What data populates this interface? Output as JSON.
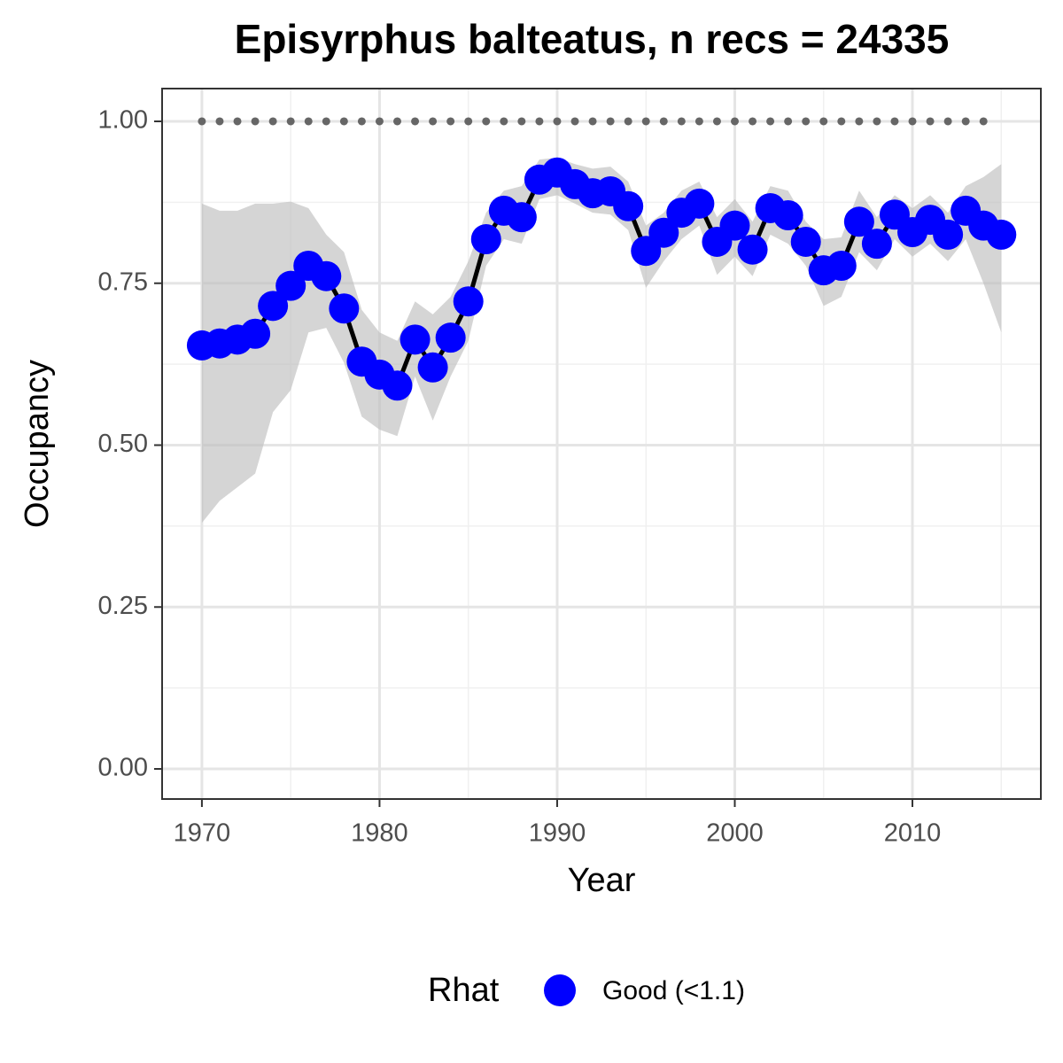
{
  "chart_data": {
    "type": "line",
    "title": "Episyrphus balteatus, n recs = 24335",
    "x_label": "Year",
    "y_label": "Occupancy",
    "x": [
      1970,
      1971,
      1972,
      1973,
      1974,
      1975,
      1976,
      1977,
      1978,
      1979,
      1980,
      1981,
      1982,
      1983,
      1984,
      1985,
      1986,
      1987,
      1988,
      1989,
      1990,
      1991,
      1992,
      1993,
      1994,
      1995,
      1996,
      1997,
      1998,
      1999,
      2000,
      2001,
      2002,
      2003,
      2004,
      2005,
      2006,
      2007,
      2008,
      2009,
      2010,
      2011,
      2012,
      2013,
      2014,
      2015
    ],
    "series": [
      {
        "name": "Good (<1.1)",
        "color": "#0000ff",
        "line_color": "#000000",
        "values": [
          0.654,
          0.657,
          0.663,
          0.672,
          0.715,
          0.746,
          0.777,
          0.761,
          0.711,
          0.629,
          0.609,
          0.592,
          0.663,
          0.62,
          0.666,
          0.722,
          0.818,
          0.862,
          0.852,
          0.91,
          0.921,
          0.903,
          0.889,
          0.892,
          0.869,
          0.8,
          0.828,
          0.859,
          0.873,
          0.814,
          0.839,
          0.802,
          0.866,
          0.855,
          0.814,
          0.77,
          0.777,
          0.845,
          0.811,
          0.856,
          0.829,
          0.848,
          0.825,
          0.862,
          0.839,
          0.825
        ],
        "lower": [
          0.38,
          0.414,
          0.435,
          0.456,
          0.551,
          0.585,
          0.674,
          0.681,
          0.627,
          0.544,
          0.524,
          0.514,
          0.606,
          0.538,
          0.606,
          0.661,
          0.777,
          0.818,
          0.811,
          0.88,
          0.886,
          0.873,
          0.859,
          0.856,
          0.832,
          0.743,
          0.784,
          0.818,
          0.839,
          0.763,
          0.791,
          0.761,
          0.825,
          0.811,
          0.777,
          0.715,
          0.729,
          0.798,
          0.77,
          0.818,
          0.791,
          0.811,
          0.784,
          0.818,
          0.75,
          0.674
        ],
        "upper": [
          0.873,
          0.862,
          0.862,
          0.873,
          0.873,
          0.876,
          0.866,
          0.825,
          0.798,
          0.709,
          0.674,
          0.661,
          0.722,
          0.702,
          0.729,
          0.784,
          0.859,
          0.893,
          0.9,
          0.941,
          0.944,
          0.934,
          0.927,
          0.93,
          0.907,
          0.839,
          0.859,
          0.893,
          0.907,
          0.852,
          0.88,
          0.845,
          0.9,
          0.893,
          0.845,
          0.818,
          0.821,
          0.893,
          0.852,
          0.886,
          0.866,
          0.886,
          0.859,
          0.9,
          0.914,
          0.934
        ]
      }
    ],
    "band_color": "#bfbfbf",
    "reference": {
      "color": "#666666",
      "values": [
        1,
        1,
        1,
        1,
        1,
        1,
        1,
        1,
        1,
        1,
        1,
        1,
        1,
        1,
        1,
        1,
        1,
        1,
        1,
        1,
        1,
        1,
        1,
        1,
        1,
        1,
        1,
        1,
        1,
        1,
        1,
        1,
        1,
        1,
        1,
        1,
        1,
        1,
        1,
        1,
        1,
        1,
        1,
        1,
        1,
        null
      ]
    },
    "xlim": [
      1967.76,
      2017.23
    ],
    "ylim": [
      -0.0465,
      1.0506
    ],
    "xticks": [
      1970,
      1980,
      1990,
      2000,
      2010
    ],
    "yticks": [
      {
        "value": 0,
        "label": "0.00"
      },
      {
        "value": 0.25,
        "label": "0.25"
      },
      {
        "value": 0.5,
        "label": "0.50"
      },
      {
        "value": 0.75,
        "label": "0.75"
      },
      {
        "value": 1,
        "label": "1.00"
      }
    ],
    "minor_xticks": [
      1975,
      1985,
      1995,
      2005,
      2015
    ],
    "minor_yticks": [
      0.125,
      0.375,
      0.625,
      0.875
    ],
    "grid": true,
    "legend_title": "Rhat",
    "legend_position": "bottom"
  }
}
